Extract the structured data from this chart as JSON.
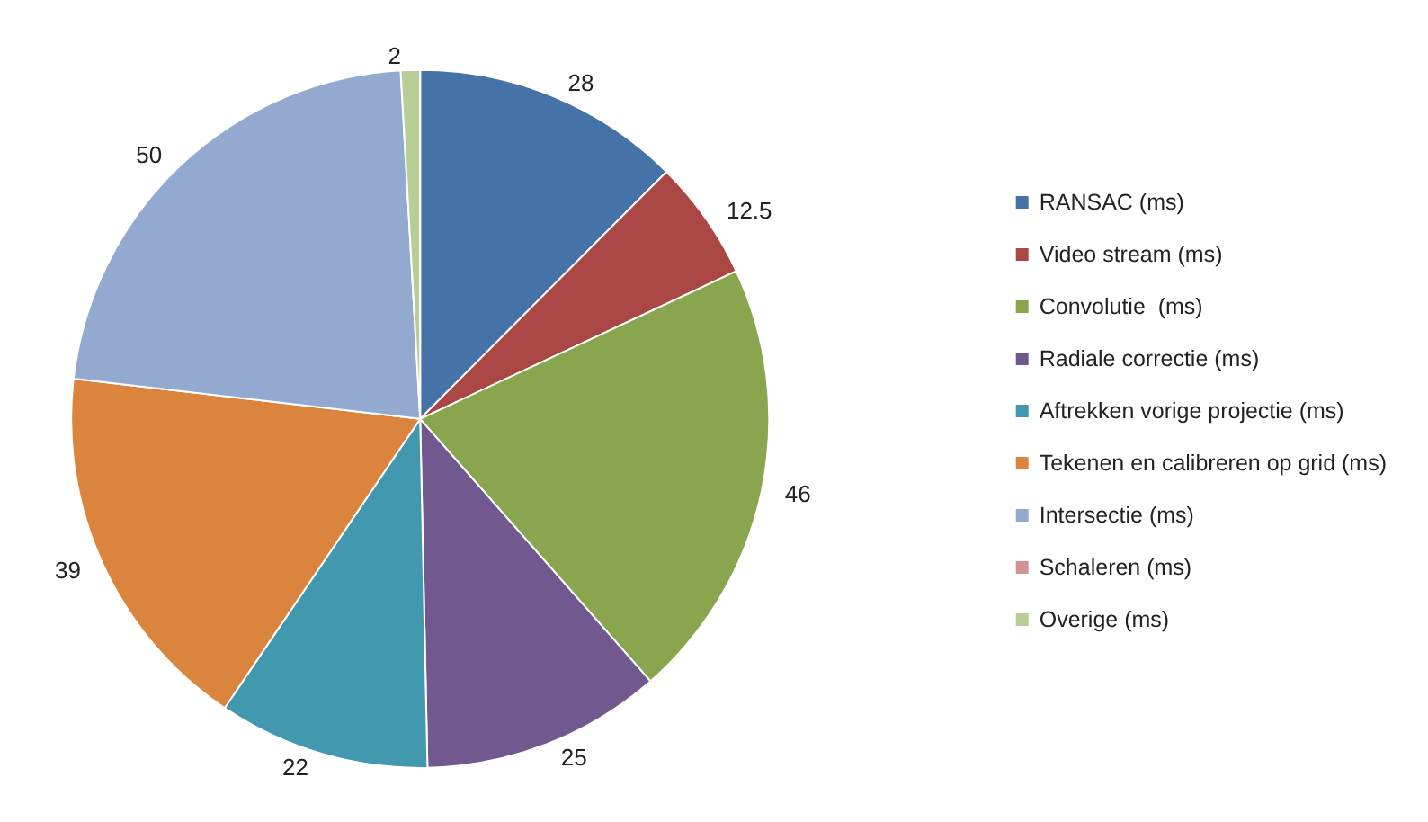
{
  "chart_data": {
    "type": "pie",
    "categories": [
      "RANSAC (ms)",
      "Video stream (ms)",
      "Convolutie  (ms)",
      "Radiale correctie (ms)",
      "Aftrekken vorige projectie (ms)",
      "Tekenen en calibreren op grid (ms)",
      "Intersectie (ms)",
      "Schaleren (ms)",
      "Overige (ms)"
    ],
    "values": [
      28,
      12.5,
      46,
      25,
      22,
      39,
      50,
      null,
      2
    ],
    "value_labels": [
      "28",
      "12.5",
      "46",
      "25",
      "22",
      "39",
      "50",
      null,
      "2"
    ],
    "colors": [
      "#4572a7",
      "#aa4643",
      "#89a54e",
      "#71588f",
      "#4198af",
      "#db843d",
      "#93a9cf",
      "#d19392",
      "#b9cd96"
    ],
    "legend": "right"
  }
}
